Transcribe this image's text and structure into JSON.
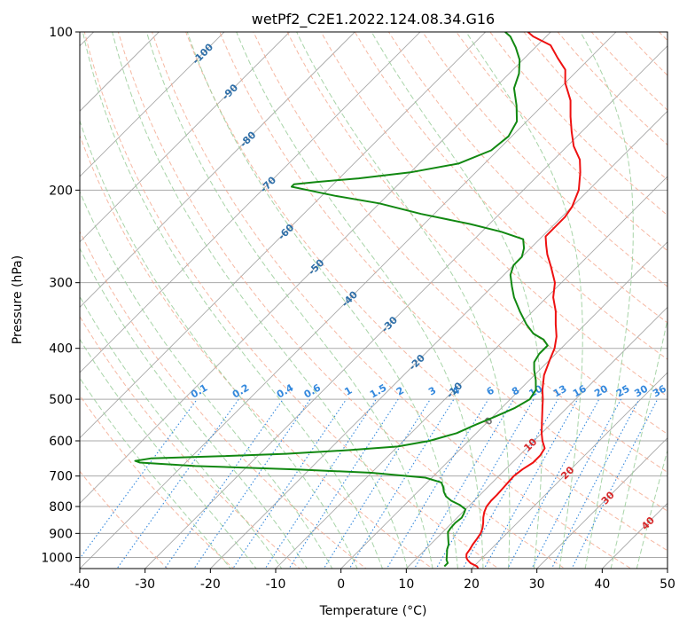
{
  "chart_data": {
    "type": "line",
    "title": "wetPf2_C2E1.2022.124.08.34.G16",
    "xlabel": "Temperature (°C)",
    "ylabel": "Pressure (hPa)",
    "xlim": [
      -40,
      50
    ],
    "ylim": [
      1050,
      100
    ],
    "y_scale": "log",
    "grid": true,
    "x_ticks": [
      -40,
      -30,
      -20,
      -10,
      0,
      10,
      20,
      30,
      40,
      50
    ],
    "y_ticks": [
      100,
      200,
      300,
      400,
      500,
      600,
      700,
      800,
      900,
      1000
    ],
    "colors": {
      "temperature": "#ee1111",
      "dewpoint": "#118811",
      "grid": "#aaaaaa",
      "isotherm": "#999999",
      "dry_adiabat": "#f4a68c",
      "moist_adiabat": "#99cc99",
      "mixing_ratio": "#3388dd",
      "isotherm_label": "#2f6fa8",
      "dry_label": "#d62728",
      "moist_label": "#777777"
    },
    "skewed_isotherm_labels": [
      {
        "text": "-100",
        "temp": -100,
        "p": 110
      },
      {
        "text": "-90",
        "temp": -90,
        "p": 130
      },
      {
        "text": "-80",
        "temp": -80,
        "p": 160
      },
      {
        "text": "-70",
        "temp": -70,
        "p": 195
      },
      {
        "text": "-60",
        "temp": -60,
        "p": 240
      },
      {
        "text": "-50",
        "temp": -50,
        "p": 280
      },
      {
        "text": "-40",
        "temp": -40,
        "p": 322
      },
      {
        "text": "-30",
        "temp": -30,
        "p": 360
      },
      {
        "text": "-20",
        "temp": -20,
        "p": 425
      },
      {
        "text": "-10",
        "temp": -10,
        "p": 480
      }
    ],
    "mixing_ratio_labels": [
      "0.1",
      "0.2",
      "0.4",
      "0.6",
      "1",
      "1.5",
      "2",
      "3",
      "4",
      "6",
      "8",
      "10",
      "13",
      "16",
      "20",
      "25",
      "30",
      "36"
    ],
    "mixing_ratio_values": [
      0.1,
      0.2,
      0.4,
      0.6,
      1,
      1.5,
      2,
      3,
      4,
      6,
      8,
      10,
      13,
      16,
      20,
      25,
      30,
      36
    ],
    "dry_adiabat_labels": [
      {
        "text": "10",
        "temp": 10,
        "p": 610
      },
      {
        "text": "20",
        "temp": 20,
        "p": 690
      },
      {
        "text": "30",
        "temp": 30,
        "p": 770
      },
      {
        "text": "40",
        "temp": 40,
        "p": 860
      }
    ],
    "moist_adiabat_labels": [
      {
        "text": "0",
        "temp": 0,
        "p": 550
      }
    ],
    "series": [
      {
        "name": "Temperature",
        "color": "#ee1111",
        "points": [
          [
            1050,
            21
          ],
          [
            1040,
            20.5
          ],
          [
            1025,
            19
          ],
          [
            1010,
            18
          ],
          [
            1000,
            17.5
          ],
          [
            985,
            17
          ],
          [
            965,
            16.8
          ],
          [
            945,
            16.5
          ],
          [
            925,
            16.3
          ],
          [
            900,
            16
          ],
          [
            880,
            15.5
          ],
          [
            860,
            14.8
          ],
          [
            840,
            14
          ],
          [
            820,
            13.3
          ],
          [
            800,
            12.8
          ],
          [
            780,
            12.6
          ],
          [
            760,
            12.6
          ],
          [
            740,
            12.5
          ],
          [
            720,
            12.4
          ],
          [
            700,
            12.3
          ],
          [
            680,
            12.6
          ],
          [
            660,
            13.2
          ],
          [
            640,
            13.2
          ],
          [
            620,
            12.8
          ],
          [
            600,
            11.3
          ],
          [
            580,
            10
          ],
          [
            550,
            8.2
          ],
          [
            520,
            6.3
          ],
          [
            500,
            5
          ],
          [
            480,
            3.5
          ],
          [
            450,
            1.5
          ],
          [
            420,
            0
          ],
          [
            400,
            -1
          ],
          [
            380,
            -2.5
          ],
          [
            360,
            -4.5
          ],
          [
            340,
            -6.5
          ],
          [
            320,
            -9
          ],
          [
            300,
            -11
          ],
          [
            280,
            -14
          ],
          [
            265,
            -16.5
          ],
          [
            255,
            -18
          ],
          [
            245,
            -19.5
          ],
          [
            235,
            -19.5
          ],
          [
            225,
            -19.5
          ],
          [
            215,
            -20
          ],
          [
            200,
            -21.5
          ],
          [
            185,
            -24
          ],
          [
            175,
            -26
          ],
          [
            165,
            -29
          ],
          [
            155,
            -31.5
          ],
          [
            145,
            -34
          ],
          [
            135,
            -36.5
          ],
          [
            125,
            -40
          ],
          [
            118,
            -42
          ],
          [
            112,
            -45
          ],
          [
            106,
            -48
          ],
          [
            102,
            -52
          ],
          [
            100,
            -53.5
          ]
        ]
      },
      {
        "name": "Dewpoint",
        "color": "#118811",
        "points": [
          [
            1040,
            15.5
          ],
          [
            1025,
            15.5
          ],
          [
            1010,
            14.8
          ],
          [
            1000,
            14.5
          ],
          [
            985,
            14
          ],
          [
            965,
            13.3
          ],
          [
            945,
            12.8
          ],
          [
            925,
            12
          ],
          [
            910,
            11.4
          ],
          [
            895,
            10.8
          ],
          [
            880,
            10.6
          ],
          [
            860,
            10.5
          ],
          [
            840,
            10.7
          ],
          [
            825,
            10.4
          ],
          [
            810,
            10
          ],
          [
            795,
            8.5
          ],
          [
            780,
            6.5
          ],
          [
            765,
            5
          ],
          [
            750,
            4
          ],
          [
            735,
            3.2
          ],
          [
            720,
            2.2
          ],
          [
            705,
            -1
          ],
          [
            690,
            -10
          ],
          [
            680,
            -22
          ],
          [
            670,
            -38
          ],
          [
            660,
            -47
          ],
          [
            655,
            -48
          ],
          [
            648,
            -46
          ],
          [
            642,
            -36
          ],
          [
            635,
            -26
          ],
          [
            625,
            -17
          ],
          [
            615,
            -10
          ],
          [
            600,
            -6
          ],
          [
            580,
            -3
          ],
          [
            560,
            -1.5
          ],
          [
            540,
            0.3
          ],
          [
            520,
            2
          ],
          [
            500,
            3
          ],
          [
            480,
            2.5
          ],
          [
            460,
            1
          ],
          [
            440,
            -0.8
          ],
          [
            425,
            -2
          ],
          [
            410,
            -2.5
          ],
          [
            395,
            -2.5
          ],
          [
            385,
            -4
          ],
          [
            375,
            -6.5
          ],
          [
            360,
            -9
          ],
          [
            340,
            -12
          ],
          [
            320,
            -15
          ],
          [
            305,
            -17
          ],
          [
            290,
            -19
          ],
          [
            278,
            -20
          ],
          [
            268,
            -20
          ],
          [
            258,
            -21
          ],
          [
            248,
            -22.5
          ],
          [
            240,
            -27
          ],
          [
            232,
            -33
          ],
          [
            222,
            -42
          ],
          [
            212,
            -50
          ],
          [
            205,
            -58
          ],
          [
            200,
            -63
          ],
          [
            197,
            -66
          ],
          [
            195,
            -66
          ],
          [
            193,
            -63
          ],
          [
            190,
            -57
          ],
          [
            185,
            -50
          ],
          [
            178,
            -44
          ],
          [
            168,
            -41
          ],
          [
            158,
            -40.5
          ],
          [
            148,
            -41.5
          ],
          [
            138,
            -44
          ],
          [
            128,
            -47
          ],
          [
            120,
            -48.5
          ],
          [
            113,
            -50.5
          ],
          [
            107,
            -53
          ],
          [
            102,
            -55.5
          ],
          [
            100,
            -57
          ]
        ]
      }
    ]
  }
}
